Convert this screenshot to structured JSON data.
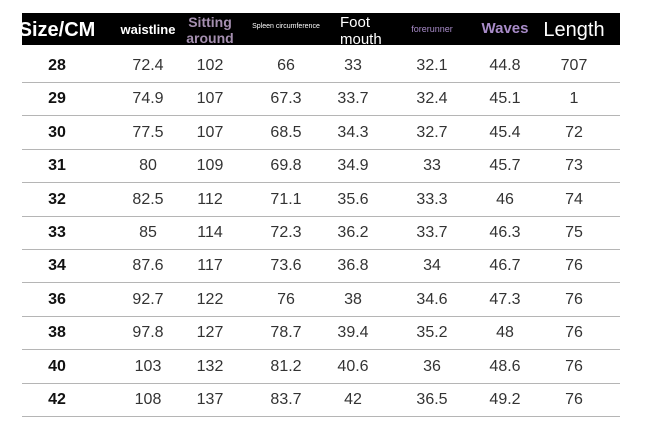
{
  "table": {
    "header": [
      "Size/CM",
      "waistline",
      "Sitting around",
      "Spleen circumference",
      "Foot mouth",
      "forerunner",
      "Waves",
      "Length"
    ],
    "rows": [
      [
        "28",
        "72.4",
        "102",
        "66",
        "33",
        "32.1",
        "44.8",
        "707"
      ],
      [
        "29",
        "74.9",
        "107",
        "67.3",
        "33.7",
        "32.4",
        "45.1",
        "1"
      ],
      [
        "30",
        "77.5",
        "107",
        "68.5",
        "34.3",
        "32.7",
        "45.4",
        "72"
      ],
      [
        "31",
        "80",
        "109",
        "69.8",
        "34.9",
        "33",
        "45.7",
        "73"
      ],
      [
        "32",
        "82.5",
        "112",
        "71.1",
        "35.6",
        "33.3",
        "46",
        "74"
      ],
      [
        "33",
        "85",
        "114",
        "72.3",
        "36.2",
        "33.7",
        "46.3",
        "75"
      ],
      [
        "34",
        "87.6",
        "117",
        "73.6",
        "36.8",
        "34",
        "46.7",
        "76"
      ],
      [
        "36",
        "92.7",
        "122",
        "76",
        "38",
        "34.6",
        "47.3",
        "76"
      ],
      [
        "38",
        "97.8",
        "127",
        "78.7",
        "39.4",
        "35.2",
        "48",
        "76"
      ],
      [
        "40",
        "103",
        "132",
        "81.2",
        "40.6",
        "36",
        "48.6",
        "76"
      ],
      [
        "42",
        "108",
        "137",
        "83.7",
        "42",
        "36.5",
        "49.2",
        "76"
      ]
    ]
  }
}
